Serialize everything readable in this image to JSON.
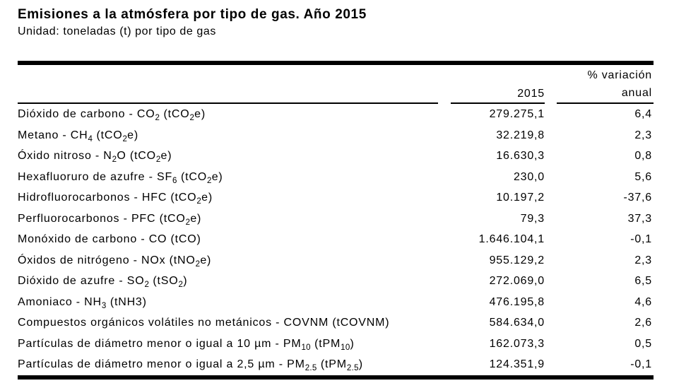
{
  "title": "Emisiones a la atmósfera por tipo de gas. Año 2015",
  "subtitle": "Unidad: toneladas (t) por tipo de gas",
  "colors": {
    "text": "#000000",
    "background": "#ffffff",
    "rules": "#000000"
  },
  "table": {
    "columns": {
      "year_header": "2015",
      "variation_header_line1": "% variación",
      "variation_header_line2": "anual"
    },
    "rows": [
      {
        "label": "Dióxido de carbono - CO~2~ (tCO~2~e)",
        "value_2015": "279.275,1",
        "variation": "6,4"
      },
      {
        "label": "Metano - CH~4~ (tCO~2~e)",
        "value_2015": "32.219,8",
        "variation": "2,3"
      },
      {
        "label": "Óxido nitroso - N~2~O (tCO~2~e)",
        "value_2015": "16.630,3",
        "variation": "0,8"
      },
      {
        "label": "Hexafluoruro de azufre - SF~6~ (tCO~2~e)",
        "value_2015": "230,0",
        "variation": "5,6"
      },
      {
        "label": "Hidrofluorocarbonos - HFC (tCO~2~e)",
        "value_2015": "10.197,2",
        "variation": "-37,6"
      },
      {
        "label": "Perfluorocarbonos - PFC (tCO~2~e)",
        "value_2015": "79,3",
        "variation": "37,3"
      },
      {
        "label": "Monóxido de carbono - CO (tCO)",
        "value_2015": "1.646.104,1",
        "variation": "-0,1"
      },
      {
        "label": "Óxidos de nitrógeno - NOx (tNO~2~e)",
        "value_2015": "955.129,2",
        "variation": "2,3"
      },
      {
        "label": "Dióxido de azufre - SO~2~ (tSO~2~)",
        "value_2015": "272.069,0",
        "variation": "6,5"
      },
      {
        "label": "Amoniaco - NH~3~ (tNH3)",
        "value_2015": "476.195,8",
        "variation": "4,6"
      },
      {
        "label": "Compuestos orgánicos volátiles no metánicos -  COVNM (tCOVNM)",
        "value_2015": "584.634,0",
        "variation": "2,6"
      },
      {
        "label": "Partículas de diámetro menor o igual a 10 µm -  PM~10~ (tPM~10~)",
        "value_2015": "162.073,3",
        "variation": "0,5"
      },
      {
        "label": "Partículas de diámetro menor o igual a 2,5 µm - PM~2.5~ (tPM~2.5~)",
        "value_2015": "124.351,9",
        "variation": "-0,1"
      }
    ]
  }
}
